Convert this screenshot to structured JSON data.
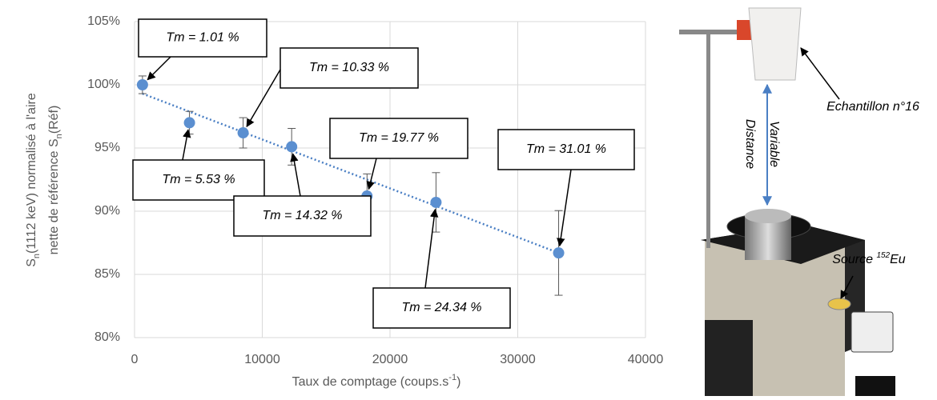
{
  "chart_data": {
    "type": "scatter",
    "ylabel": [
      [
        "S",
        "n",
        "(1112 keV) normalisé à l'aire"
      ],
      [
        "nette de référence S",
        "n",
        "(Réf)"
      ]
    ],
    "xlabel": [
      "Taux de comptage (coups.s",
      "-1",
      ")"
    ],
    "x": [
      620,
      4300,
      8500,
      12300,
      18200,
      23600,
      33200
    ],
    "values": [
      100,
      97.0,
      96.2,
      95.1,
      91.2,
      90.7,
      86.7
    ],
    "errors": [
      0.7,
      0.9,
      1.2,
      1.45,
      1.75,
      2.35,
      3.35
    ],
    "color": "#5b8fd0",
    "trendline": {
      "x": [
        620,
        33200
      ],
      "y": [
        99.3,
        86.7
      ],
      "color": "#4a7fc4"
    },
    "annotations": [
      "Tm = 1.01 %",
      "Tm = 5.53 %",
      "Tm = 10.33 %",
      "Tm = 14.32 %",
      "Tm = 19.77 %",
      "Tm = 24.34 %",
      "Tm = 31.01 %"
    ],
    "xlim": [
      0,
      40000
    ],
    "xticks": [
      0,
      10000,
      20000,
      30000,
      40000
    ],
    "ylim": [
      80,
      105
    ],
    "yticks": [
      {
        "value": 80,
        "label": "80%"
      },
      {
        "value": 85,
        "label": "85%"
      },
      {
        "value": 90,
        "label": "90%"
      },
      {
        "value": 95,
        "label": "95%"
      },
      {
        "value": 100,
        "label": "100%"
      },
      {
        "value": 105,
        "label": "105%"
      }
    ],
    "grid": true
  },
  "photo": {
    "sample_label": "Echantillon n°16",
    "distance_label": [
      "Distance",
      "Variable"
    ],
    "source_label": [
      "Source ",
      "152",
      "Eu"
    ]
  }
}
